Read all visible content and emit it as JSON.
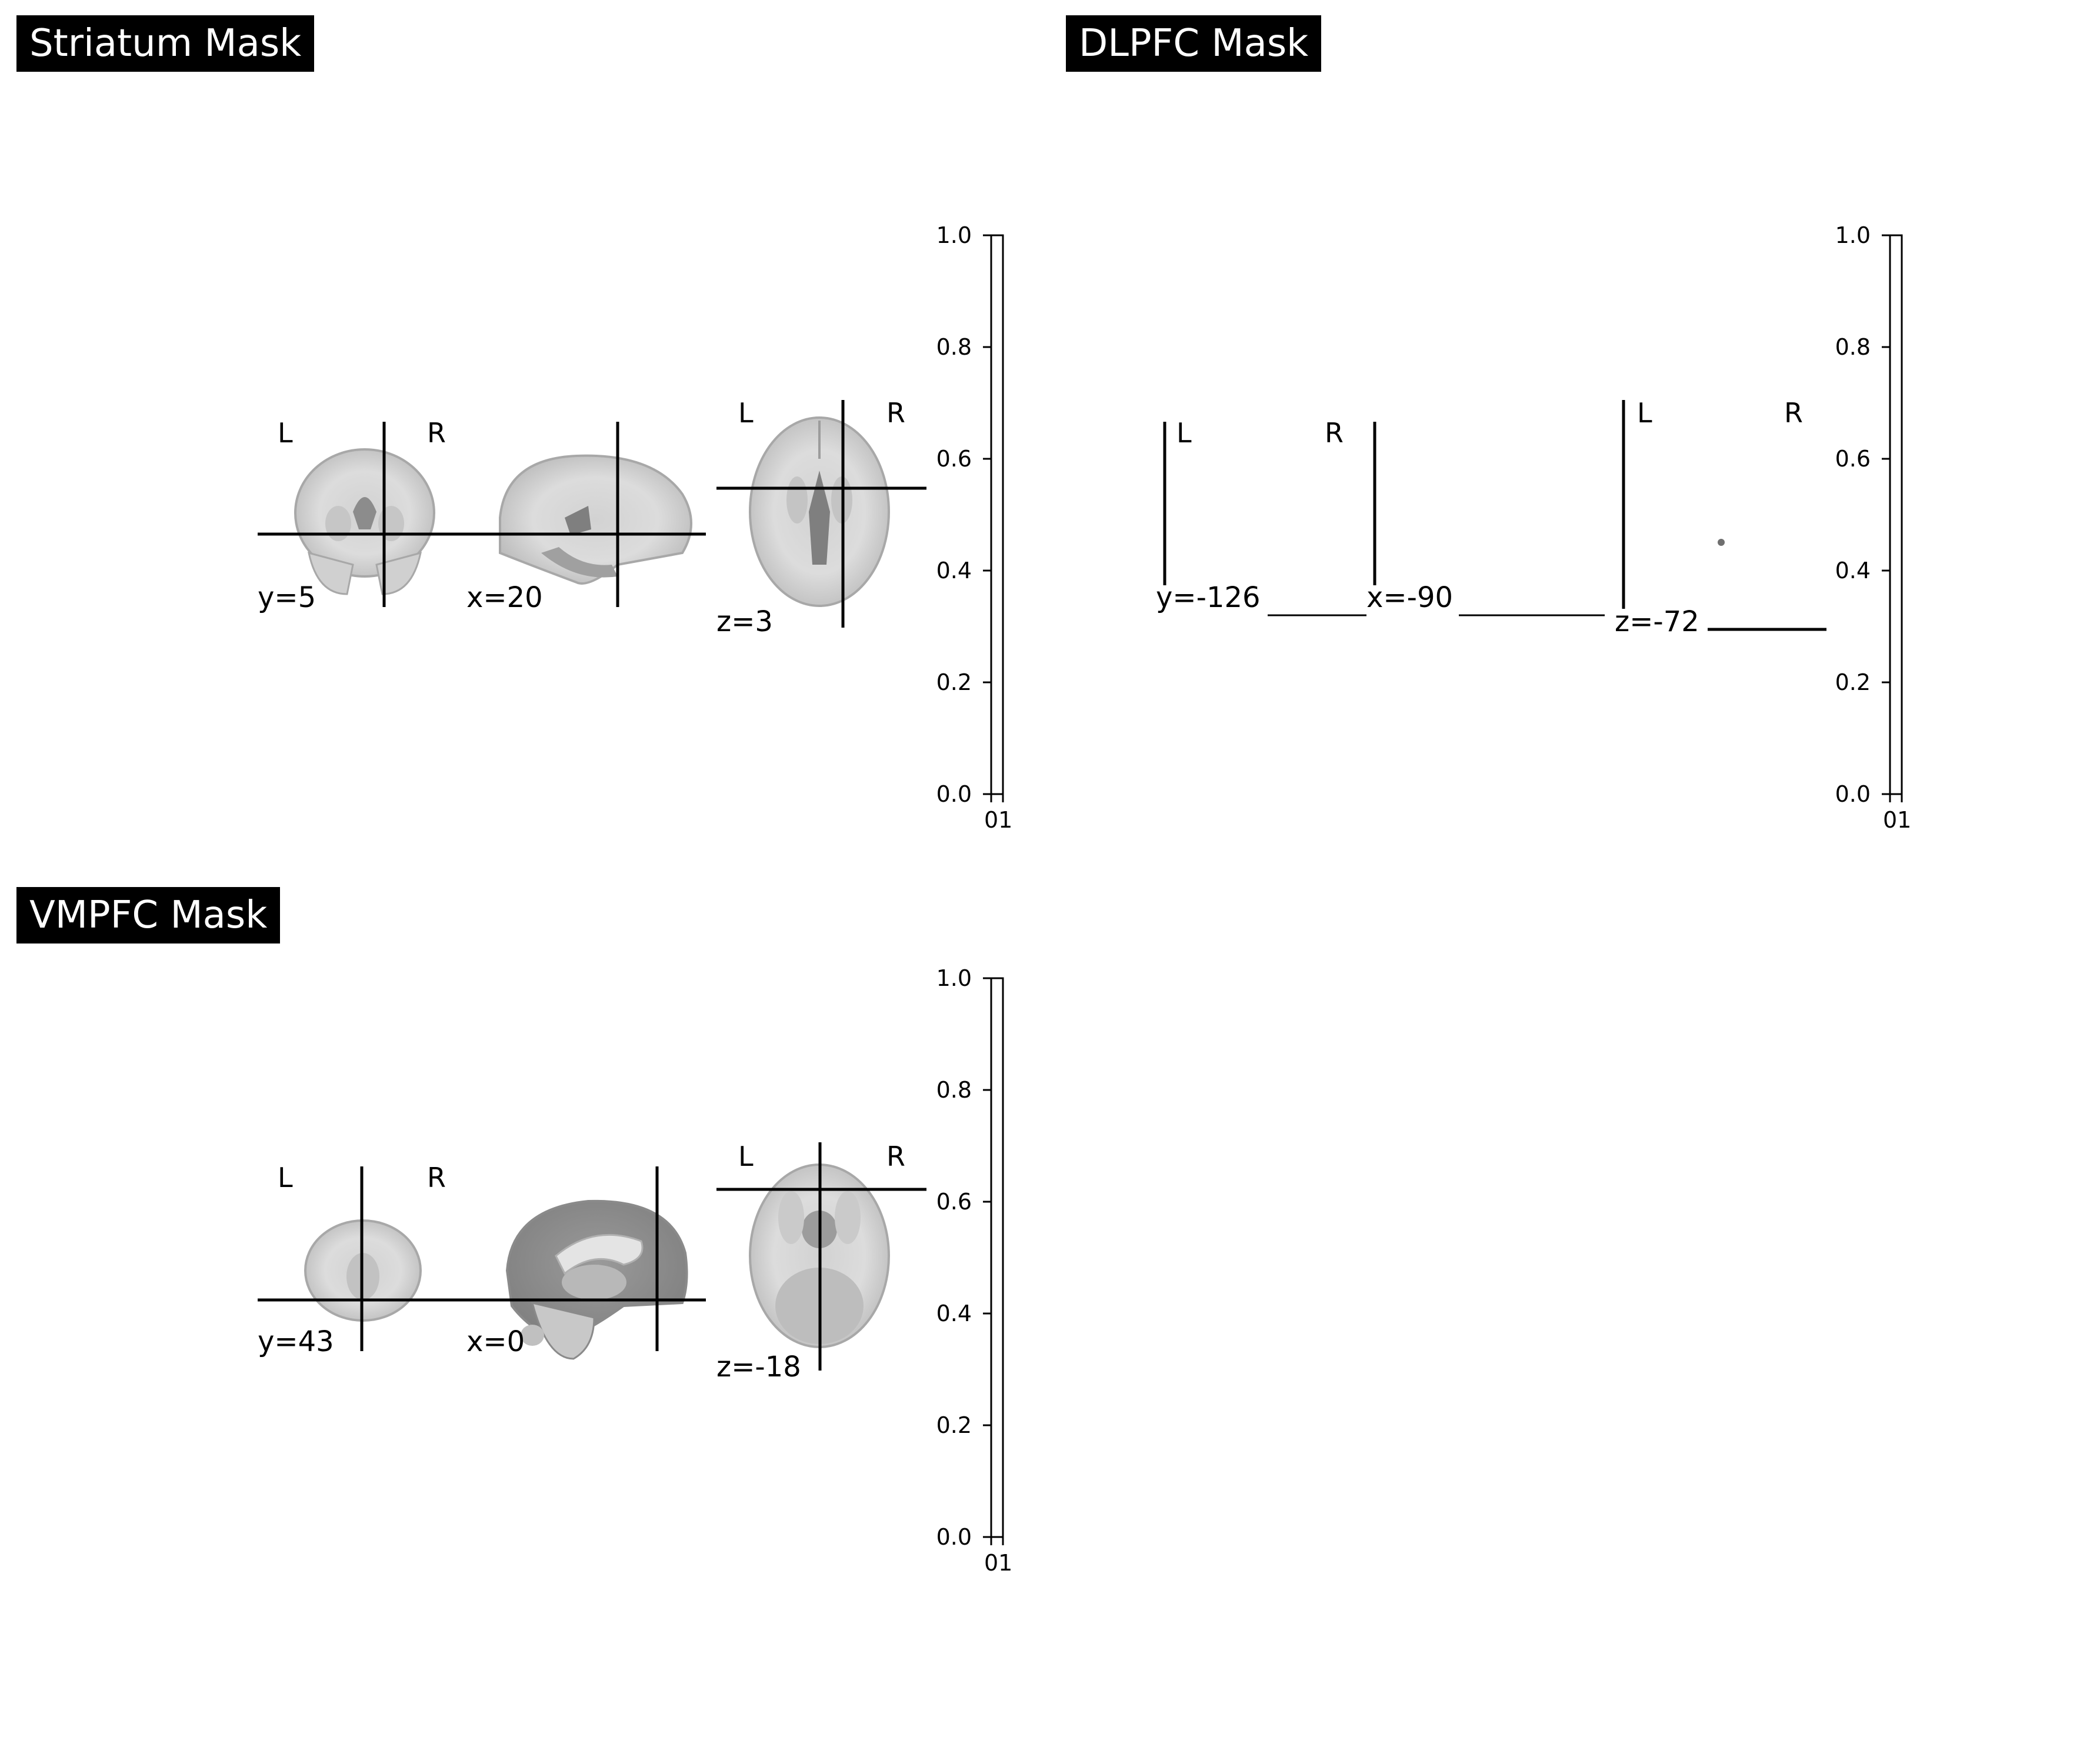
{
  "panels": [
    {
      "title": "Striatum Mask",
      "orientation_left": "L",
      "orientation_right": "R",
      "cut_labels": [
        "y=5",
        "x=20",
        "z=3"
      ],
      "colorbar": {
        "ticks": [
          "0.0",
          "0.2",
          "0.4",
          "0.6",
          "0.8",
          "1.0"
        ],
        "xticks": "01"
      }
    },
    {
      "title": "DLPFC Mask",
      "orientation_left": "L",
      "orientation_right": "R",
      "cut_labels": [
        "y=-126",
        "x=-90",
        "z=-72"
      ],
      "colorbar": {
        "ticks": [
          "0.0",
          "0.2",
          "0.4",
          "0.6",
          "0.8",
          "1.0"
        ],
        "xticks": "01"
      }
    },
    {
      "title": "VMPFC Mask",
      "orientation_left": "L",
      "orientation_right": "R",
      "cut_labels": [
        "y=43",
        "x=0",
        "z=-18"
      ],
      "colorbar": {
        "ticks": [
          "0.0",
          "0.2",
          "0.4",
          "0.6",
          "0.8",
          "1.0"
        ],
        "xticks": "01"
      }
    }
  ],
  "colors": {
    "background": "#ffffff",
    "line": "#000000",
    "brain_light": "#e2e2e2",
    "brain_mid": "#b5b5b5",
    "brain_dark": "#7a7a7a"
  }
}
